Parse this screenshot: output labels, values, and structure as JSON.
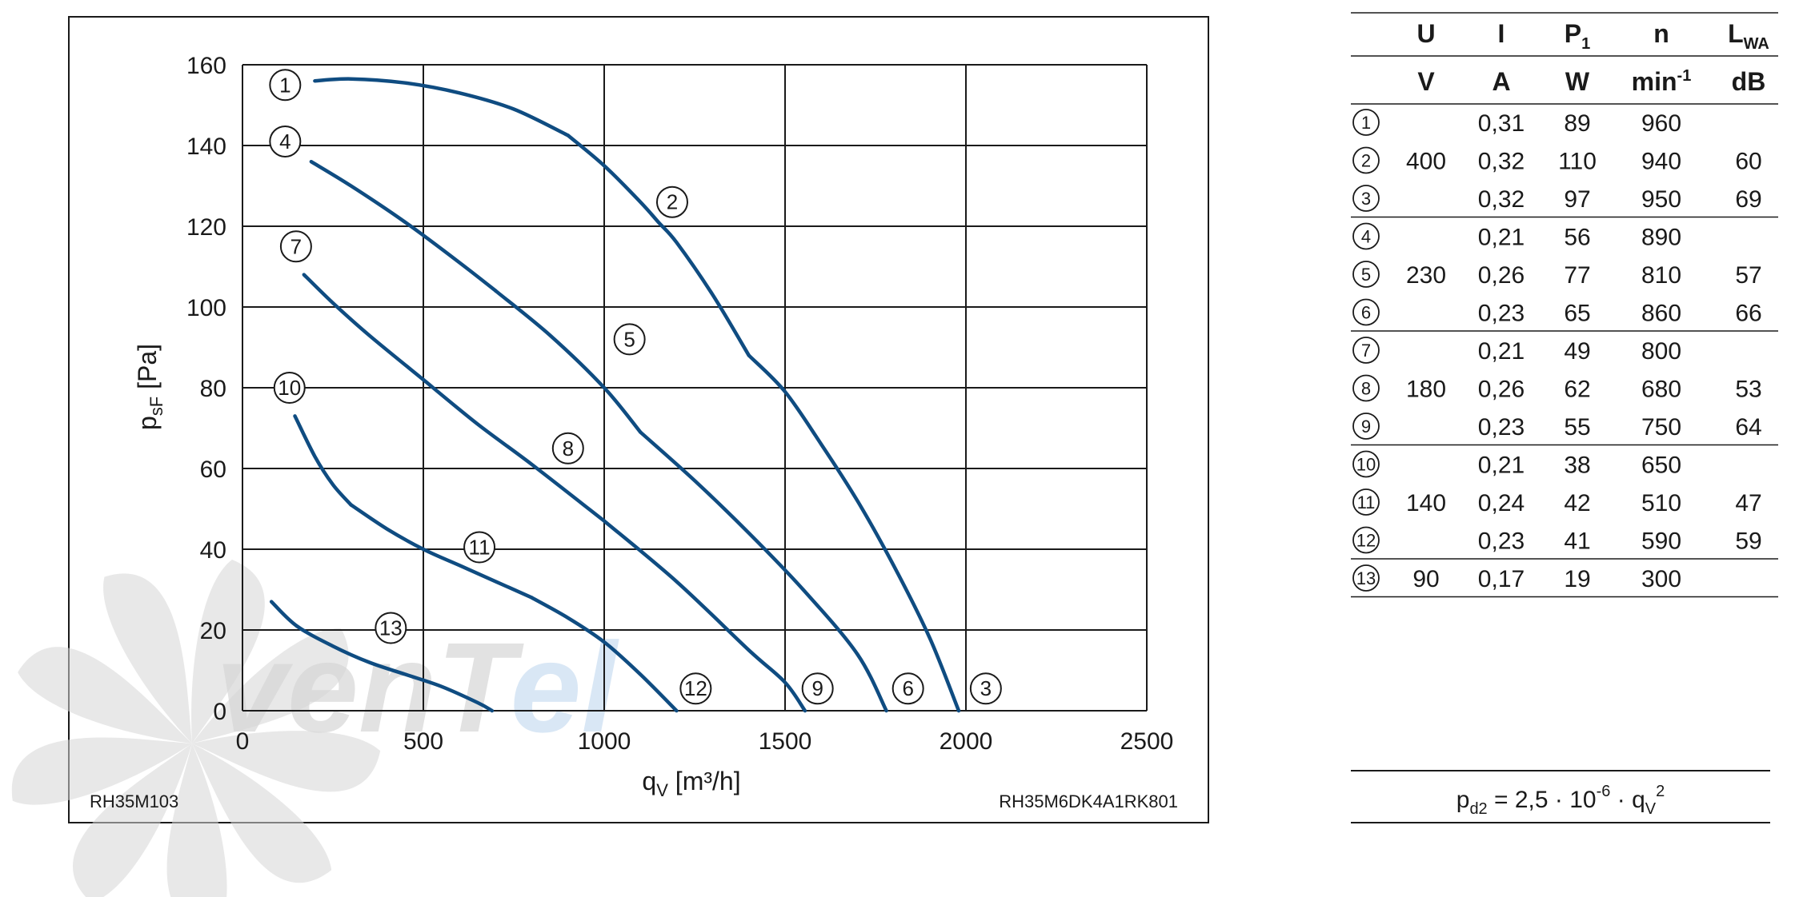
{
  "chart_data": {
    "type": "line",
    "xlabel": "qV [m³/h]",
    "ylabel": "psF [Pa]",
    "xlim": [
      0,
      2500
    ],
    "ylim": [
      0,
      160
    ],
    "xticks": [
      0,
      500,
      1000,
      1500,
      2000,
      2500
    ],
    "yticks": [
      0,
      20,
      40,
      60,
      80,
      100,
      120,
      140,
      160
    ],
    "grid": true,
    "line_color": "#0f4c81",
    "series": [
      {
        "name": "1",
        "x": [
          200,
          300,
          450,
          600,
          750,
          900
        ],
        "y": [
          156,
          156.5,
          155.5,
          153,
          149,
          142.5
        ]
      },
      {
        "name": "2",
        "x": [
          900,
          1000,
          1100,
          1150,
          1200,
          1300,
          1400
        ],
        "y": [
          142.5,
          135,
          126,
          121,
          116,
          103,
          88
        ]
      },
      {
        "name": "3",
        "x": [
          1400,
          1500,
          1600,
          1700,
          1800,
          1900,
          1980
        ],
        "y": [
          88,
          79,
          66,
          52,
          36,
          18,
          0
        ]
      },
      {
        "name": "4",
        "x": [
          190,
          300,
          450,
          600,
          700
        ],
        "y": [
          136,
          130,
          121,
          111,
          104
        ]
      },
      {
        "name": "5",
        "x": [
          700,
          850,
          1000,
          1100
        ],
        "y": [
          104,
          93,
          80,
          69
        ]
      },
      {
        "name": "6",
        "x": [
          1100,
          1250,
          1400,
          1550,
          1700,
          1780
        ],
        "y": [
          69,
          57,
          44,
          30,
          14,
          0
        ]
      },
      {
        "name": "7",
        "x": [
          170,
          250,
          350,
          500
        ],
        "y": [
          108,
          101,
          93,
          82
        ]
      },
      {
        "name": "8",
        "x": [
          500,
          650,
          800,
          1000
        ],
        "y": [
          82,
          71,
          61,
          47
        ]
      },
      {
        "name": "9",
        "x": [
          1000,
          1200,
          1400,
          1500,
          1555
        ],
        "y": [
          47,
          32,
          15,
          7,
          0
        ]
      },
      {
        "name": "10",
        "x": [
          145,
          200,
          250,
          300
        ],
        "y": [
          73,
          63,
          56,
          51
        ]
      },
      {
        "name": "11",
        "x": [
          300,
          400,
          500,
          600,
          700,
          800
        ],
        "y": [
          51,
          45,
          40,
          36,
          32,
          28
        ]
      },
      {
        "name": "12",
        "x": [
          800,
          900,
          1000,
          1100,
          1200
        ],
        "y": [
          28,
          23,
          17,
          9,
          0
        ]
      },
      {
        "name": "13",
        "x": [
          80,
          150,
          250,
          350,
          450,
          550,
          650,
          690
        ],
        "y": [
          27,
          21,
          16,
          12,
          9,
          6,
          2,
          0
        ]
      }
    ],
    "curve_label_positions": [
      {
        "text": "1",
        "x": 118,
        "y": 155
      },
      {
        "text": "4",
        "x": 118,
        "y": 141
      },
      {
        "text": "7",
        "x": 148,
        "y": 115
      },
      {
        "text": "10",
        "x": 130,
        "y": 80
      },
      {
        "text": "2",
        "x": 1188,
        "y": 126
      },
      {
        "text": "5",
        "x": 1070,
        "y": 92
      },
      {
        "text": "8",
        "x": 900,
        "y": 65
      },
      {
        "text": "11",
        "x": 655,
        "y": 40.5
      },
      {
        "text": "13",
        "x": 410,
        "y": 20.5
      },
      {
        "text": "12",
        "x": 1253,
        "y": 5.5
      },
      {
        "text": "9",
        "x": 1590,
        "y": 5.5
      },
      {
        "text": "6",
        "x": 1840,
        "y": 5.5
      },
      {
        "text": "3",
        "x": 2055,
        "y": 5.5
      }
    ]
  },
  "chart_codes": {
    "left": "RH35M103",
    "right": "RH35M6DK4A1RK801"
  },
  "watermark": {
    "text": "venTel",
    "color_gray": "#d6d6d6",
    "color_blue": "#cfe1f2"
  },
  "table": {
    "headers": [
      "U",
      "I",
      "P1",
      "n",
      "LWA"
    ],
    "header_main": [
      "U",
      "I",
      "P",
      "n",
      "L"
    ],
    "header_sub": [
      "",
      "",
      "1",
      "",
      "WA"
    ],
    "units": [
      "V",
      "A",
      "W",
      "min",
      "dB"
    ],
    "unit_sup": "-1",
    "rows": [
      {
        "id": "1",
        "U": "",
        "I": "0,31",
        "P": "89",
        "n": "960",
        "L": ""
      },
      {
        "id": "2",
        "U": "400",
        "I": "0,32",
        "P": "110",
        "n": "940",
        "L": "60"
      },
      {
        "id": "3",
        "U": "",
        "I": "0,32",
        "P": "97",
        "n": "950",
        "L": "69"
      },
      {
        "id": "4",
        "U": "",
        "I": "0,21",
        "P": "56",
        "n": "890",
        "L": ""
      },
      {
        "id": "5",
        "U": "230",
        "I": "0,26",
        "P": "77",
        "n": "810",
        "L": "57"
      },
      {
        "id": "6",
        "U": "",
        "I": "0,23",
        "P": "65",
        "n": "860",
        "L": "66"
      },
      {
        "id": "7",
        "U": "",
        "I": "0,21",
        "P": "49",
        "n": "800",
        "L": ""
      },
      {
        "id": "8",
        "U": "180",
        "I": "0,26",
        "P": "62",
        "n": "680",
        "L": "53"
      },
      {
        "id": "9",
        "U": "",
        "I": "0,23",
        "P": "55",
        "n": "750",
        "L": "64"
      },
      {
        "id": "10",
        "U": "",
        "I": "0,21",
        "P": "38",
        "n": "650",
        "L": ""
      },
      {
        "id": "11",
        "U": "140",
        "I": "0,24",
        "P": "42",
        "n": "510",
        "L": "47"
      },
      {
        "id": "12",
        "U": "",
        "I": "0,23",
        "P": "41",
        "n": "590",
        "L": "59"
      },
      {
        "id": "13",
        "U": "90",
        "I": "0,17",
        "P": "19",
        "n": "300",
        "L": ""
      }
    ],
    "group_ends": [
      3,
      6,
      9,
      12,
      13
    ]
  },
  "formula": {
    "full": "pd2 = 2,5 · 10-6 · qV2",
    "p": "p",
    "p_sub": "d2",
    "eq": " = 2,5 · 10",
    "exp": "-6",
    "mid": " · q",
    "q_sub": "V",
    "q_sup": "2"
  }
}
